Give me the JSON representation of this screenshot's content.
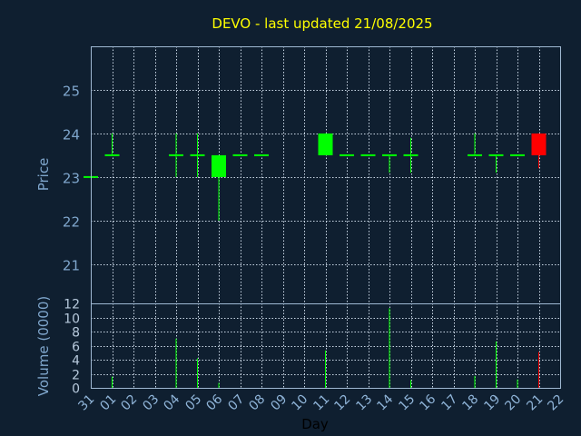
{
  "chart_data": {
    "type": "candlestick",
    "title": "DEVO - last updated 21/08/2025",
    "xlabel": "Day",
    "price": {
      "ylabel": "Price",
      "ylim": [
        20.1,
        26.0
      ],
      "yticks": [
        21,
        22,
        23,
        24,
        25
      ],
      "grid": true
    },
    "volume": {
      "ylabel": "Volume (0000)",
      "ylim": [
        0,
        12
      ],
      "yticks": [
        0,
        2,
        4,
        6,
        8,
        10,
        12
      ],
      "grid": true
    },
    "x_ticks": [
      "31",
      "01",
      "02",
      "03",
      "04",
      "05",
      "06",
      "07",
      "08",
      "09",
      "10",
      "11",
      "12",
      "13",
      "14",
      "15",
      "16",
      "17",
      "18",
      "19",
      "20",
      "21",
      "22"
    ],
    "candles": [
      {
        "day": "31",
        "open": 23.0,
        "high": 23.0,
        "low": 23.0,
        "close": 23.0,
        "volume": 0,
        "color": "#00ff00"
      },
      {
        "day": "01",
        "open": 23.5,
        "high": 24.0,
        "low": 23.5,
        "close": 23.5,
        "volume": 1.6,
        "color": "#00ff00"
      },
      {
        "day": "04",
        "open": 23.5,
        "high": 24.0,
        "low": 23.0,
        "close": 23.5,
        "volume": 7.0,
        "color": "#00ff00"
      },
      {
        "day": "05",
        "open": 23.5,
        "high": 24.0,
        "low": 23.0,
        "close": 23.5,
        "volume": 4.2,
        "color": "#00ff00"
      },
      {
        "day": "06",
        "open": 23.0,
        "high": 23.5,
        "low": 22.0,
        "close": 23.5,
        "volume": 0.7,
        "color": "#00ff00"
      },
      {
        "day": "07",
        "open": 23.5,
        "high": 23.5,
        "low": 23.5,
        "close": 23.5,
        "volume": 0,
        "color": "#00ff00"
      },
      {
        "day": "08",
        "open": 23.5,
        "high": 23.5,
        "low": 23.5,
        "close": 23.5,
        "volume": 0,
        "color": "#00ff00"
      },
      {
        "day": "11",
        "open": 23.5,
        "high": 24.0,
        "low": 23.5,
        "close": 24.0,
        "volume": 5.3,
        "color": "#00ff00"
      },
      {
        "day": "12",
        "open": 23.5,
        "high": 23.5,
        "low": 23.5,
        "close": 23.5,
        "volume": 0,
        "color": "#00ff00"
      },
      {
        "day": "13",
        "open": 23.5,
        "high": 23.5,
        "low": 23.5,
        "close": 23.5,
        "volume": 0,
        "color": "#00ff00"
      },
      {
        "day": "14",
        "open": 23.5,
        "high": 23.5,
        "low": 23.1,
        "close": 23.5,
        "volume": 11.3,
        "color": "#00ff00"
      },
      {
        "day": "15",
        "open": 23.5,
        "high": 23.9,
        "low": 23.1,
        "close": 23.5,
        "volume": 1.1,
        "color": "#00ff00"
      },
      {
        "day": "18",
        "open": 23.5,
        "high": 24.0,
        "low": 23.5,
        "close": 23.5,
        "volume": 1.7,
        "color": "#00ff00"
      },
      {
        "day": "19",
        "open": 23.5,
        "high": 23.5,
        "low": 23.1,
        "close": 23.5,
        "volume": 6.6,
        "color": "#00ff00"
      },
      {
        "day": "20",
        "open": 23.5,
        "high": 23.5,
        "low": 23.5,
        "close": 23.5,
        "volume": 1.2,
        "color": "#00ff00"
      },
      {
        "day": "21",
        "open": 24.0,
        "high": 24.0,
        "low": 23.2,
        "close": 23.5,
        "volume": 5.1,
        "color": "#ff0000"
      }
    ],
    "colors": {
      "background": "#0f1f30",
      "frame": "#9fb8d2",
      "grid": "#c8d6e4",
      "up": "#00ff00",
      "down": "#ff0000"
    }
  }
}
